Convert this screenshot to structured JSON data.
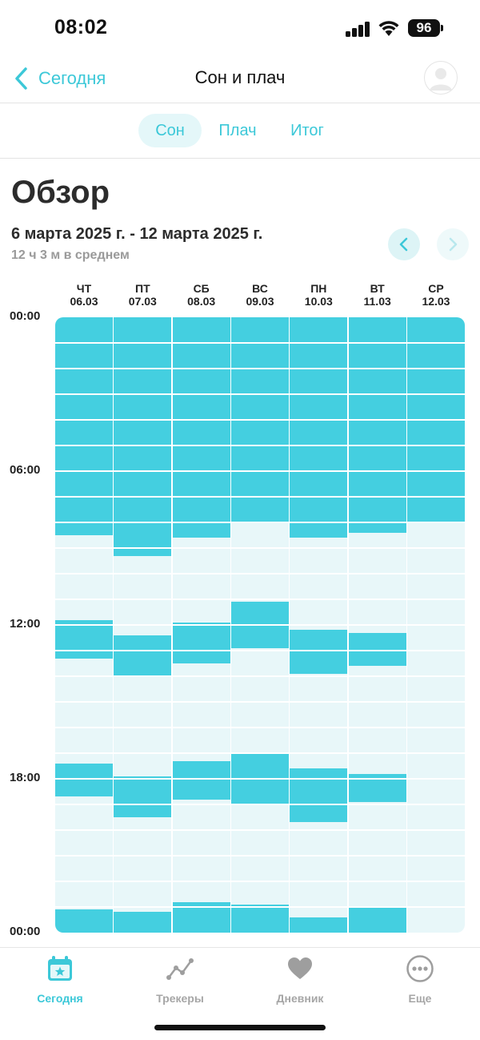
{
  "status_bar": {
    "time": "08:02",
    "battery": "96"
  },
  "nav": {
    "back_label": "Сегодня",
    "title": "Сон и плач"
  },
  "tabs": [
    {
      "label": "Сон",
      "active": true
    },
    {
      "label": "Плач",
      "active": false
    },
    {
      "label": "Итог",
      "active": false
    }
  ],
  "overview": {
    "title": "Обзор",
    "date_range": "6 марта 2025 г. - 12 марта 2025 г.",
    "average": "12 ч 3 м в среднем"
  },
  "colors": {
    "accent": "#3cc8d8",
    "sleep_bar": "#44cfe0",
    "empty_day": "#e8f7f9"
  },
  "chart_data": {
    "type": "bar",
    "orientation": "vertical-timeline",
    "y_axis": {
      "min_hours": 0,
      "max_hours": 24,
      "tick_labels": [
        "00:00",
        "06:00",
        "12:00",
        "18:00",
        "00:00"
      ]
    },
    "days": [
      {
        "weekday": "ЧТ",
        "date": "06.03",
        "sleep": [
          [
            0,
            8.5
          ],
          [
            11.8,
            13.3
          ],
          [
            17.4,
            18.7
          ],
          [
            23.1,
            24
          ]
        ]
      },
      {
        "weekday": "ПТ",
        "date": "07.03",
        "sleep": [
          [
            0,
            9.3
          ],
          [
            12.4,
            14.0
          ],
          [
            17.9,
            19.5
          ],
          [
            23.2,
            24
          ]
        ]
      },
      {
        "weekday": "СБ",
        "date": "08.03",
        "sleep": [
          [
            0,
            8.6
          ],
          [
            11.9,
            13.5
          ],
          [
            17.3,
            18.8
          ],
          [
            22.8,
            24
          ]
        ]
      },
      {
        "weekday": "ВС",
        "date": "09.03",
        "sleep": [
          [
            0,
            8.0
          ],
          [
            11.1,
            12.9
          ],
          [
            17.0,
            19.0
          ],
          [
            22.9,
            24
          ]
        ]
      },
      {
        "weekday": "ПН",
        "date": "10.03",
        "sleep": [
          [
            0,
            8.6
          ],
          [
            12.2,
            13.9
          ],
          [
            17.6,
            19.7
          ],
          [
            23.4,
            24
          ]
        ]
      },
      {
        "weekday": "ВТ",
        "date": "11.03",
        "sleep": [
          [
            0,
            8.4
          ],
          [
            12.3,
            13.6
          ],
          [
            17.8,
            18.9
          ],
          [
            23.0,
            24
          ]
        ]
      },
      {
        "weekday": "СР",
        "date": "12.03",
        "sleep": [
          [
            0,
            8.0
          ]
        ]
      }
    ]
  },
  "tabbar": [
    {
      "label": "Сегодня",
      "icon": "calendar-star-icon",
      "active": true
    },
    {
      "label": "Трекеры",
      "icon": "trend-line-icon",
      "active": false
    },
    {
      "label": "Дневник",
      "icon": "heart-icon",
      "active": false
    },
    {
      "label": "Еще",
      "icon": "more-dots-icon",
      "active": false
    }
  ]
}
